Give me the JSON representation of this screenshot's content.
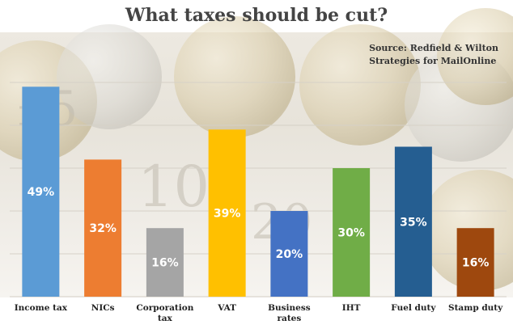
{
  "title": "What taxes should be cut?",
  "source": {
    "line1": "Source: Redfield & Wilton",
    "line2": "Strategies for MailOnline"
  },
  "chart_data": {
    "type": "bar",
    "title": "What taxes should be cut?",
    "categories": [
      [
        "Income tax"
      ],
      [
        "NICs"
      ],
      [
        "Corporation",
        "tax"
      ],
      [
        "VAT"
      ],
      [
        "Business",
        "rates"
      ],
      [
        "IHT"
      ],
      [
        "Fuel duty"
      ],
      [
        "Stamp duty"
      ]
    ],
    "values": [
      49,
      32,
      16,
      39,
      20,
      30,
      35,
      16
    ],
    "value_labels": [
      "49%",
      "32%",
      "16%",
      "39%",
      "20%",
      "30%",
      "35%",
      "16%"
    ],
    "colors": [
      "#5b9bd5",
      "#ed7d31",
      "#a5a5a5",
      "#ffc000",
      "#4472c4",
      "#70ad47",
      "#255e91",
      "#9e480e"
    ],
    "ylim": [
      0,
      50
    ],
    "grid": true,
    "xlabel": "",
    "ylabel": ""
  }
}
